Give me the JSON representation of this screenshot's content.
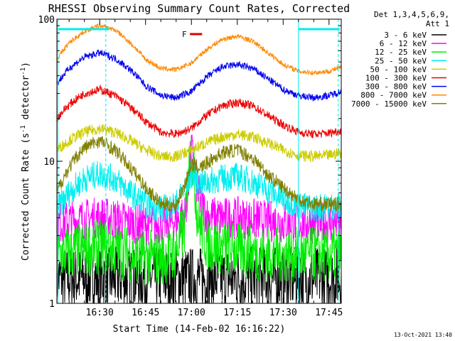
{
  "chart_data": {
    "type": "line",
    "title": "RHESSI Observing Summary Count Rates, Corrected",
    "xlabel": "Start Time (14-Feb-02 16:16:22)",
    "ylabel": "Corrected Count Rate (s⁻¹ detector⁻¹)",
    "ylabel_parts": {
      "main": "Corrected Count Rate (s",
      "sup1": "-1",
      "mid": " detector",
      "sup2": "-1",
      "end": ")"
    },
    "y_scale": "log",
    "xlim_min": [
      976,
      1069
    ],
    "ylim": [
      1,
      100
    ],
    "xticks": [
      {
        "min": 990,
        "label": "16:30"
      },
      {
        "min": 1005,
        "label": "16:45"
      },
      {
        "min": 1020,
        "label": "17:00"
      },
      {
        "min": 1035,
        "label": "17:15"
      },
      {
        "min": 1050,
        "label": "17:30"
      },
      {
        "min": 1065,
        "label": "17:45"
      }
    ],
    "yticks": [
      {
        "value": 1,
        "label": "1"
      },
      {
        "value": 10,
        "label": "10"
      },
      {
        "value": 100,
        "label": "100"
      }
    ],
    "legend_header": [
      "Det 1,3,4,5,6,9,",
      "Att 1"
    ],
    "legend_position": "right",
    "flare_marker": {
      "label": "F",
      "start_min": 1019.5,
      "end_min": 1023.5,
      "color": "#dd0000"
    },
    "grid": false,
    "series": [
      {
        "name": "3 - 6 keV",
        "color": "#000000",
        "noise": 0.45,
        "points": [
          [
            976,
            1.5
          ],
          [
            986,
            1.5
          ],
          [
            990,
            1.5
          ],
          [
            995,
            1.5
          ],
          [
            1000,
            1.5
          ],
          [
            1005,
            1.5
          ],
          [
            1010,
            1.5
          ],
          [
            1015,
            1.5
          ],
          [
            1018,
            1.5
          ],
          [
            1020,
            1.5
          ],
          [
            1022,
            1.5
          ],
          [
            1025,
            1.5
          ],
          [
            1030,
            1.5
          ],
          [
            1035,
            1.5
          ],
          [
            1040,
            1.5
          ],
          [
            1045,
            1.5
          ],
          [
            1050,
            1.5
          ],
          [
            1055,
            1.5
          ],
          [
            1060,
            1.5
          ],
          [
            1065,
            1.5
          ],
          [
            1069,
            1.5
          ]
        ]
      },
      {
        "name": "6 - 12 keV",
        "color": "#ff00ff",
        "noise": 0.3,
        "points": [
          [
            976,
            3.7
          ],
          [
            985,
            3.9
          ],
          [
            990,
            4.0
          ],
          [
            995,
            3.9
          ],
          [
            1000,
            3.7
          ],
          [
            1005,
            3.6
          ],
          [
            1010,
            3.6
          ],
          [
            1015,
            3.8
          ],
          [
            1018,
            4.2
          ],
          [
            1019,
            7.0
          ],
          [
            1020,
            12.0
          ],
          [
            1021,
            9.0
          ],
          [
            1022,
            6.0
          ],
          [
            1025,
            4.1
          ],
          [
            1030,
            4.0
          ],
          [
            1035,
            4.0
          ],
          [
            1040,
            3.9
          ],
          [
            1045,
            3.8
          ],
          [
            1050,
            3.7
          ],
          [
            1055,
            3.7
          ],
          [
            1060,
            3.7
          ],
          [
            1065,
            3.7
          ],
          [
            1069,
            3.7
          ]
        ]
      },
      {
        "name": "12 - 25 keV",
        "color": "#00ee00",
        "noise": 0.4,
        "points": [
          [
            976,
            2.2
          ],
          [
            985,
            2.4
          ],
          [
            990,
            2.5
          ],
          [
            995,
            2.4
          ],
          [
            1000,
            2.2
          ],
          [
            1005,
            2.1
          ],
          [
            1010,
            2.1
          ],
          [
            1015,
            2.3
          ],
          [
            1018,
            3.5
          ],
          [
            1019,
            8.0
          ],
          [
            1020,
            12.0
          ],
          [
            1021,
            7.0
          ],
          [
            1022,
            4.0
          ],
          [
            1025,
            2.6
          ],
          [
            1030,
            2.5
          ],
          [
            1035,
            2.4
          ],
          [
            1040,
            2.3
          ],
          [
            1045,
            2.2
          ],
          [
            1050,
            2.2
          ],
          [
            1055,
            2.2
          ],
          [
            1060,
            2.2
          ],
          [
            1065,
            2.2
          ],
          [
            1069,
            2.2
          ]
        ]
      },
      {
        "name": "25 - 50 keV",
        "color": "#00eeee",
        "noise": 0.2,
        "points": [
          [
            976,
            4.5
          ],
          [
            980,
            6.0
          ],
          [
            985,
            7.5
          ],
          [
            990,
            8.2
          ],
          [
            995,
            7.5
          ],
          [
            1000,
            6.0
          ],
          [
            1005,
            5.0
          ],
          [
            1010,
            4.6
          ],
          [
            1015,
            5.0
          ],
          [
            1018,
            6.5
          ],
          [
            1020,
            8.0
          ],
          [
            1023,
            7.0
          ],
          [
            1026,
            7.2
          ],
          [
            1030,
            7.6
          ],
          [
            1035,
            7.8
          ],
          [
            1040,
            7.2
          ],
          [
            1045,
            6.2
          ],
          [
            1050,
            5.4
          ],
          [
            1055,
            4.9
          ],
          [
            1060,
            4.7
          ],
          [
            1065,
            4.8
          ],
          [
            1069,
            4.8
          ]
        ]
      },
      {
        "name": "50 - 100 keV",
        "color": "#cccc00",
        "noise": 0.08,
        "points": [
          [
            976,
            12.0
          ],
          [
            980,
            14.0
          ],
          [
            985,
            16.0
          ],
          [
            990,
            17.0
          ],
          [
            995,
            16.0
          ],
          [
            1000,
            14.0
          ],
          [
            1005,
            12.0
          ],
          [
            1010,
            10.8
          ],
          [
            1015,
            10.8
          ],
          [
            1020,
            12.0
          ],
          [
            1025,
            13.5
          ],
          [
            1030,
            14.8
          ],
          [
            1035,
            15.5
          ],
          [
            1040,
            14.8
          ],
          [
            1045,
            13.5
          ],
          [
            1050,
            12.0
          ],
          [
            1055,
            11.0
          ],
          [
            1060,
            10.8
          ],
          [
            1065,
            11.0
          ],
          [
            1069,
            11.5
          ]
        ]
      },
      {
        "name": "100 - 300 keV",
        "color": "#ee0000",
        "noise": 0.06,
        "points": [
          [
            976,
            20.0
          ],
          [
            980,
            25.0
          ],
          [
            985,
            30.0
          ],
          [
            990,
            32.0
          ],
          [
            995,
            29.0
          ],
          [
            1000,
            24.0
          ],
          [
            1005,
            19.0
          ],
          [
            1010,
            16.0
          ],
          [
            1015,
            15.5
          ],
          [
            1020,
            17.0
          ],
          [
            1025,
            21.0
          ],
          [
            1030,
            24.5
          ],
          [
            1035,
            26.0
          ],
          [
            1040,
            24.5
          ],
          [
            1045,
            21.0
          ],
          [
            1050,
            18.0
          ],
          [
            1055,
            16.0
          ],
          [
            1060,
            15.5
          ],
          [
            1065,
            15.8
          ],
          [
            1069,
            16.5
          ]
        ]
      },
      {
        "name": "300 - 800 keV",
        "color": "#0000ee",
        "noise": 0.05,
        "points": [
          [
            976,
            35.0
          ],
          [
            980,
            45.0
          ],
          [
            985,
            54.0
          ],
          [
            990,
            58.0
          ],
          [
            995,
            53.0
          ],
          [
            1000,
            44.0
          ],
          [
            1005,
            34.0
          ],
          [
            1010,
            29.0
          ],
          [
            1015,
            28.0
          ],
          [
            1020,
            31.0
          ],
          [
            1025,
            39.0
          ],
          [
            1030,
            46.0
          ],
          [
            1035,
            48.0
          ],
          [
            1040,
            45.0
          ],
          [
            1045,
            38.0
          ],
          [
            1050,
            32.0
          ],
          [
            1055,
            29.0
          ],
          [
            1060,
            28.0
          ],
          [
            1065,
            29.0
          ],
          [
            1069,
            31.0
          ]
        ]
      },
      {
        "name": "800 - 7000 keV",
        "color": "#ff8800",
        "noise": 0.035,
        "points": [
          [
            976,
            52.0
          ],
          [
            980,
            68.0
          ],
          [
            985,
            82.0
          ],
          [
            990,
            90.0
          ],
          [
            995,
            84.0
          ],
          [
            1000,
            68.0
          ],
          [
            1005,
            52.0
          ],
          [
            1010,
            45.0
          ],
          [
            1015,
            44.0
          ],
          [
            1020,
            49.0
          ],
          [
            1025,
            61.0
          ],
          [
            1030,
            72.0
          ],
          [
            1035,
            76.0
          ],
          [
            1040,
            70.0
          ],
          [
            1045,
            58.0
          ],
          [
            1050,
            48.0
          ],
          [
            1055,
            43.0
          ],
          [
            1060,
            42.0
          ],
          [
            1065,
            43.0
          ],
          [
            1069,
            46.0
          ]
        ]
      },
      {
        "name": "7000 - 15000 keV",
        "color": "#808000",
        "noise": 0.1,
        "points": [
          [
            976,
            6.0
          ],
          [
            980,
            9.0
          ],
          [
            985,
            12.5
          ],
          [
            990,
            14.0
          ],
          [
            995,
            12.0
          ],
          [
            1000,
            9.0
          ],
          [
            1005,
            6.5
          ],
          [
            1010,
            5.0
          ],
          [
            1015,
            4.9
          ],
          [
            1018,
            7.0
          ],
          [
            1020,
            9.5
          ],
          [
            1023,
            9.0
          ],
          [
            1026,
            10.0
          ],
          [
            1030,
            11.5
          ],
          [
            1035,
            12.0
          ],
          [
            1040,
            10.5
          ],
          [
            1045,
            8.0
          ],
          [
            1050,
            6.5
          ],
          [
            1055,
            5.4
          ],
          [
            1060,
            5.0
          ],
          [
            1065,
            5.0
          ],
          [
            1069,
            5.0
          ]
        ]
      }
    ]
  },
  "footer": {
    "timestamp": "13-Oct-2021 13:40"
  }
}
